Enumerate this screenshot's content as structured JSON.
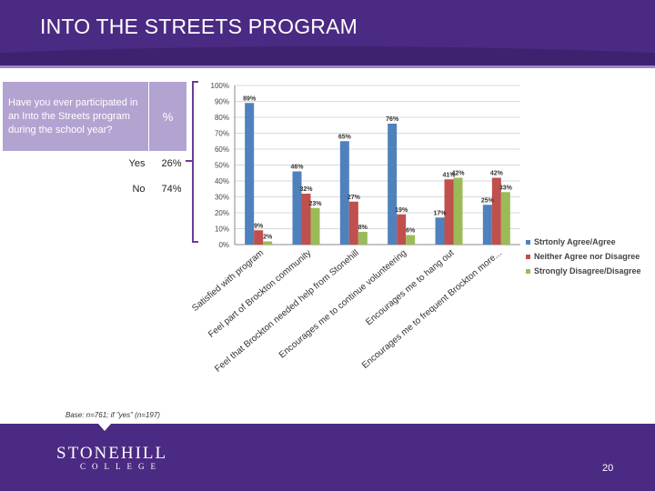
{
  "header": {
    "title": "INTO THE STREETS PROGRAM"
  },
  "question_table": {
    "question": "Have you ever participated in an Into the Streets program during the school year?",
    "percent_header": "%",
    "rows": [
      {
        "label": "Yes",
        "value": "26%"
      },
      {
        "label": "No",
        "value": "74%"
      }
    ]
  },
  "chart_data": {
    "type": "bar",
    "categories": [
      "Satisfied with program",
      "Feel part of Brockton community",
      "Feel that Brockton needed help from Stonehill",
      "Encourages me to continue volunteering",
      "Encourages me to hang out",
      "Encourages me to frequent Brockton more..."
    ],
    "series": [
      {
        "name": "Strtonly Agree/Agree",
        "values": [
          89,
          46,
          65,
          76,
          17,
          25
        ],
        "labels": [
          "89%",
          "46%",
          "65%",
          "76%",
          "17%",
          "25%"
        ]
      },
      {
        "name": "Neither Agree nor Disagree",
        "values": [
          9,
          32,
          27,
          19,
          41,
          42
        ],
        "labels": [
          "9%",
          "32%",
          "27%",
          "19%",
          "41%",
          "42%"
        ]
      },
      {
        "name": "Strongly Disagree/Disagree",
        "values": [
          2,
          23,
          8,
          6,
          42,
          33
        ],
        "labels": [
          "2%",
          "23%",
          "8%",
          "6%",
          "42%",
          "33%"
        ]
      }
    ],
    "y_ticks": [
      "0%",
      "10%",
      "20%",
      "30%",
      "40%",
      "50%",
      "60%",
      "70%",
      "80%",
      "90%",
      "100%"
    ],
    "ylim": [
      0,
      100
    ],
    "legend_position": "right",
    "colors": [
      "#4f81bd",
      "#c0504d",
      "#9bbb59"
    ]
  },
  "base_note": "Base: n=761; if \"yes\" (n=197)",
  "footer": {
    "logo_name": "STONEHILL",
    "logo_sub": "COLLEGE",
    "page_number": "20"
  },
  "colors": {
    "brand_purple": "#4b2a83",
    "table_header": "#b3a3d1",
    "accent_line": "#9b86c4"
  }
}
